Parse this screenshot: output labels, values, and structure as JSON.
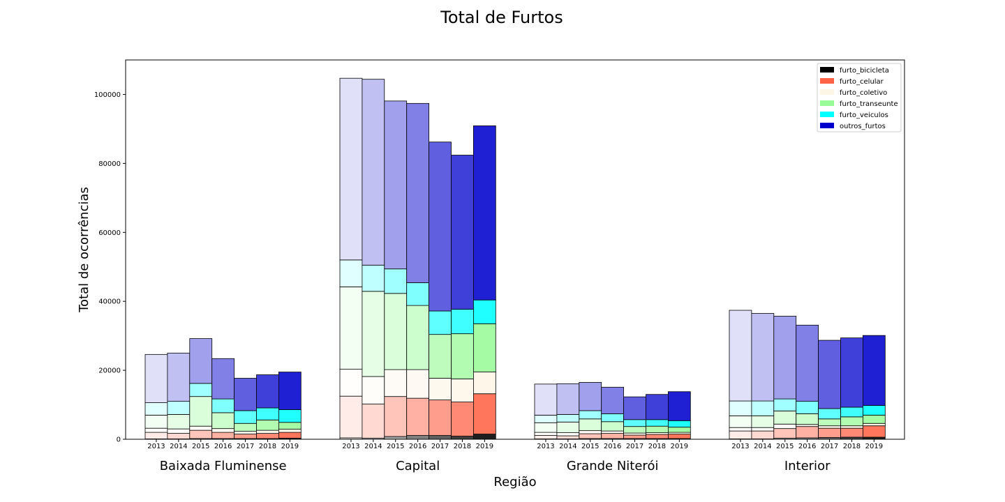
{
  "chart_data": {
    "type": "bar",
    "title": "Total de Furtos",
    "xlabel": "Região",
    "ylabel": "Total de ocorrências",
    "ylim": [
      0,
      110000
    ],
    "yticks": [
      0,
      20000,
      40000,
      60000,
      80000,
      100000
    ],
    "years": [
      "2013",
      "2014",
      "2015",
      "2016",
      "2017",
      "2018",
      "2019"
    ],
    "groups": [
      "Baixada Fluminense",
      "Capital",
      "Grande Niterói",
      "Interior"
    ],
    "legend_position": "top-right",
    "grid": false,
    "stacked": true,
    "series": [
      {
        "name": "furto_bicicleta",
        "color": "#000000"
      },
      {
        "name": "furto_celular",
        "color": "#ff6347"
      },
      {
        "name": "furto_coletivo",
        "color": "#fdf5e6"
      },
      {
        "name": "furto_transeunte",
        "color": "#98fb98"
      },
      {
        "name": "furto_veiculos",
        "color": "#00ffff"
      },
      {
        "name": "outros_furtos",
        "color": "#0000cd"
      }
    ],
    "data": {
      "Baixada Fluminense": [
        [
          100,
          1900,
          1200,
          3800,
          3600,
          14000
        ],
        [
          100,
          1600,
          1300,
          4200,
          3800,
          14000
        ],
        [
          200,
          2400,
          1200,
          8600,
          3800,
          13000
        ],
        [
          200,
          1800,
          1100,
          4600,
          4000,
          11700
        ],
        [
          200,
          1300,
          800,
          2300,
          3700,
          9400
        ],
        [
          200,
          1500,
          900,
          3000,
          3500,
          9600
        ],
        [
          300,
          1700,
          900,
          2000,
          3700,
          10900
        ]
      ],
      "Capital": [
        [
          400,
          12100,
          7800,
          23900,
          7800,
          52700
        ],
        [
          300,
          9900,
          8000,
          24700,
          7600,
          53900
        ],
        [
          800,
          11600,
          7800,
          22100,
          7100,
          48700
        ],
        [
          1100,
          10800,
          8300,
          18600,
          6600,
          52000
        ],
        [
          1100,
          10300,
          6300,
          12700,
          6800,
          49000
        ],
        [
          900,
          9900,
          6700,
          13100,
          7100,
          44700
        ],
        [
          1500,
          11700,
          6300,
          14000,
          6900,
          50500
        ]
      ],
      "Grande Niterói": [
        [
          100,
          1000,
          900,
          2800,
          2200,
          9000
        ],
        [
          100,
          900,
          900,
          3100,
          2200,
          8900
        ],
        [
          200,
          1400,
          900,
          3400,
          2400,
          8200
        ],
        [
          200,
          1500,
          700,
          2700,
          2300,
          7700
        ],
        [
          200,
          1000,
          600,
          1900,
          2000,
          6600
        ],
        [
          200,
          1200,
          500,
          1900,
          1900,
          7300
        ],
        [
          200,
          1300,
          500,
          1500,
          1900,
          8400
        ]
      ],
      "Interior": [
        [
          100,
          2300,
          1000,
          3400,
          4300,
          26300
        ],
        [
          100,
          2300,
          1000,
          3400,
          4300,
          25400
        ],
        [
          300,
          2800,
          1300,
          3800,
          3500,
          24000
        ],
        [
          400,
          3300,
          600,
          3100,
          3600,
          22100
        ],
        [
          500,
          2700,
          700,
          2000,
          3000,
          19800
        ],
        [
          600,
          2600,
          700,
          2600,
          2800,
          20100
        ],
        [
          600,
          3300,
          700,
          2400,
          2800,
          20300
        ]
      ]
    }
  }
}
